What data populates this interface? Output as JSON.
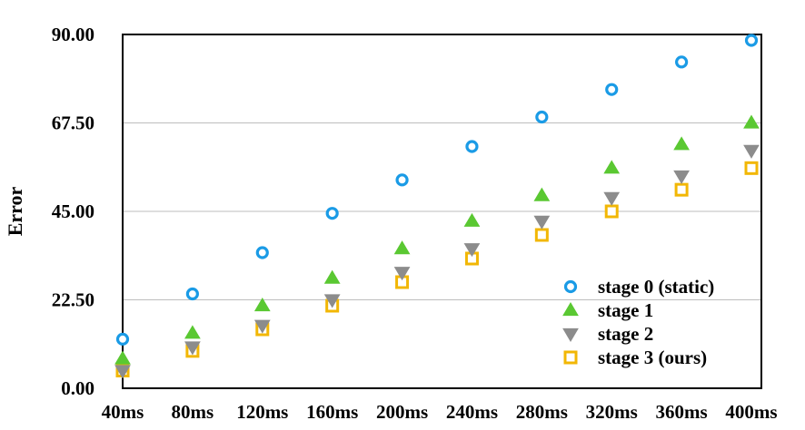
{
  "chart_data": {
    "type": "scatter",
    "title": "",
    "xlabel": "",
    "ylabel": "Error",
    "categories": [
      "40ms",
      "80ms",
      "120ms",
      "160ms",
      "200ms",
      "240ms",
      "280ms",
      "320ms",
      "360ms",
      "400ms"
    ],
    "y_ticks": [
      "0.00",
      "22.50",
      "45.00",
      "67.50",
      "90.00"
    ],
    "ylim": [
      0,
      90
    ],
    "grid": "horizontal",
    "legend_position": "bottom-right",
    "series": [
      {
        "name": "stage 0 (static)",
        "marker": "circle",
        "color": "#1a9be6",
        "values": [
          12.5,
          24.0,
          34.5,
          44.5,
          53.0,
          61.5,
          69.0,
          76.0,
          83.0,
          88.5
        ]
      },
      {
        "name": "stage 1",
        "marker": "triangle-up",
        "color": "#5ac832",
        "values": [
          7.5,
          14.0,
          21.0,
          28.0,
          35.5,
          42.5,
          49.0,
          56.0,
          62.0,
          67.5
        ]
      },
      {
        "name": "stage 2",
        "marker": "triangle-down",
        "color": "#8c8c8c",
        "values": [
          4.5,
          10.5,
          16.0,
          22.5,
          29.5,
          35.5,
          42.5,
          48.5,
          54.0,
          60.5
        ]
      },
      {
        "name": "stage 3 (ours)",
        "marker": "square",
        "color": "#f2b705",
        "values": [
          4.5,
          9.5,
          15.0,
          21.0,
          27.0,
          33.0,
          39.0,
          45.0,
          50.5,
          56.0
        ]
      }
    ]
  }
}
